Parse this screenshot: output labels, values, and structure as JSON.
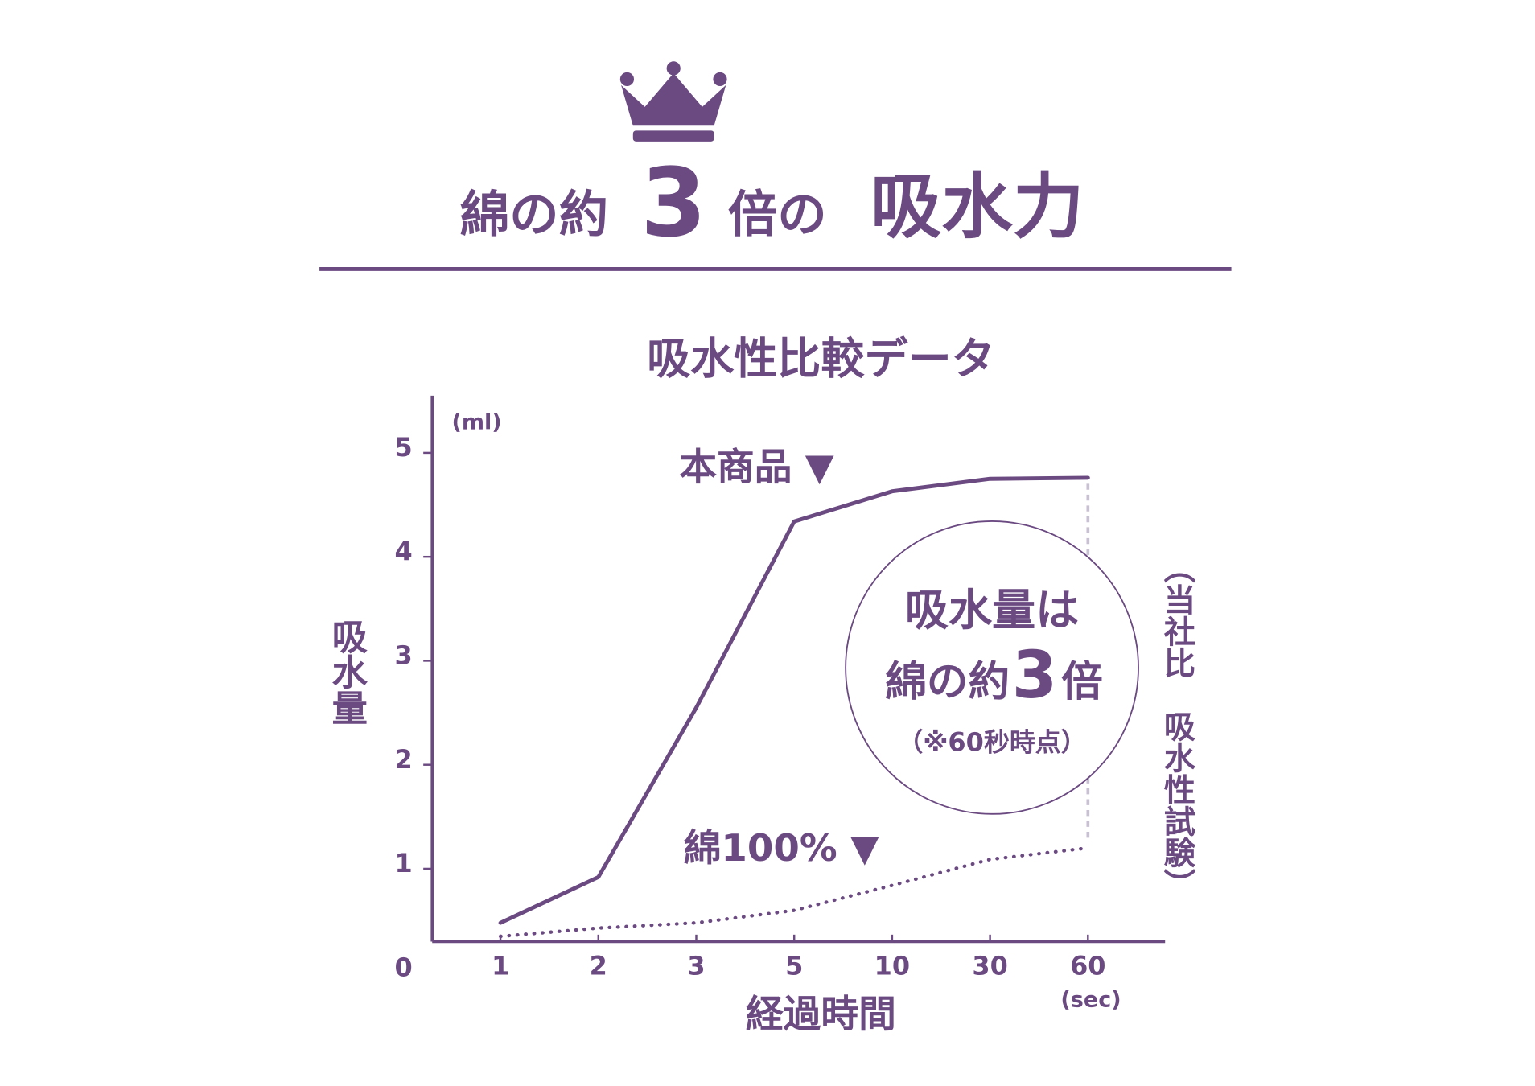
{
  "chart_data": {
    "type": "line",
    "headline": [
      "綿の約",
      "3",
      "倍の",
      "吸水力"
    ],
    "title": "吸水性比較データ",
    "y_label": "吸水量",
    "y_unit": "(ml)",
    "x_label": "経過時間",
    "x_unit": "(sec)",
    "categories": [
      "1",
      "2",
      "3",
      "5",
      "10",
      "30",
      "60"
    ],
    "series": [
      {
        "name": "本商品 ▼",
        "color": "#6b4a82",
        "style": "solid",
        "values": [
          0.48,
          0.92,
          2.55,
          4.34,
          4.63,
          4.75,
          4.76
        ]
      },
      {
        "name": "綿100% ▼",
        "color": "#6b4a82",
        "style": "dotted",
        "values": [
          0.35,
          0.43,
          0.48,
          0.6,
          0.84,
          1.09,
          1.2
        ]
      }
    ],
    "ylim": [
      0.3,
      5.55
    ],
    "yticks": [
      0,
      1,
      2,
      3,
      4,
      5
    ],
    "callout": {
      "line1": "吸水量は",
      "line2a": "綿の約",
      "line2b": "3",
      "line2c": "倍",
      "note": "（※60秒時点）"
    },
    "side_note": "（当社比　吸水性試験）"
  }
}
